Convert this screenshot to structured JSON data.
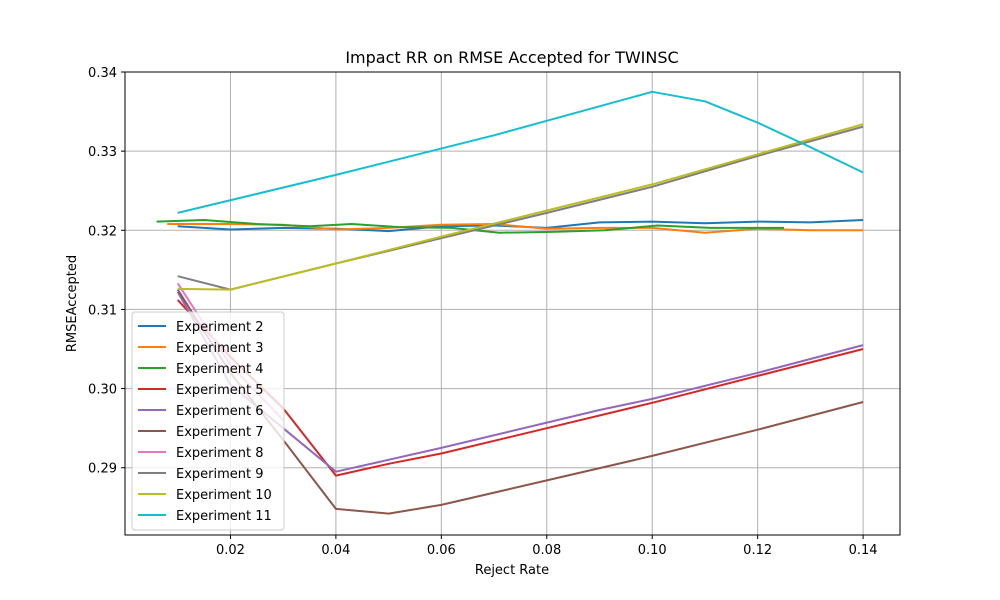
{
  "chart_data": {
    "type": "line",
    "title": "Impact RR on RMSE Accepted for TWINSC",
    "xlabel": "Reject Rate",
    "ylabel": "RMSEAccepted",
    "xlim": [
      0.0,
      0.147
    ],
    "ylim": [
      0.2815,
      0.34
    ],
    "xticks": [
      0.02,
      0.04,
      0.06,
      0.08,
      0.1,
      0.12,
      0.14
    ],
    "xtick_labels": [
      "0.02",
      "0.04",
      "0.06",
      "0.08",
      "0.10",
      "0.12",
      "0.14"
    ],
    "yticks": [
      0.29,
      0.3,
      0.31,
      0.32,
      0.33,
      0.34
    ],
    "ytick_labels": [
      "0.29",
      "0.30",
      "0.31",
      "0.32",
      "0.33",
      "0.34"
    ],
    "grid": true,
    "legend_position": "lower-left",
    "series": [
      {
        "name": "Experiment 2",
        "color": "#1f77b4",
        "x": [
          0.01,
          0.02,
          0.03,
          0.04,
          0.05,
          0.06,
          0.07,
          0.08,
          0.09,
          0.1,
          0.11,
          0.12,
          0.13,
          0.14
        ],
        "y": [
          0.3205,
          0.3201,
          0.3203,
          0.3202,
          0.3199,
          0.3205,
          0.3206,
          0.3203,
          0.321,
          0.3211,
          0.3209,
          0.3211,
          0.321,
          0.3213
        ]
      },
      {
        "name": "Experiment 3",
        "color": "#ff7f0e",
        "x": [
          0.008,
          0.02,
          0.03,
          0.04,
          0.05,
          0.06,
          0.07,
          0.08,
          0.09,
          0.1,
          0.11,
          0.12,
          0.13,
          0.14
        ],
        "y": [
          0.3208,
          0.3208,
          0.3207,
          0.3201,
          0.3203,
          0.3207,
          0.3208,
          0.3202,
          0.3203,
          0.3203,
          0.3197,
          0.3202,
          0.32,
          0.32
        ]
      },
      {
        "name": "Experiment 4",
        "color": "#2ca02c",
        "x": [
          0.006,
          0.015,
          0.025,
          0.035,
          0.043,
          0.052,
          0.062,
          0.071,
          0.081,
          0.091,
          0.101,
          0.111,
          0.12,
          0.125
        ],
        "y": [
          0.3211,
          0.3213,
          0.3208,
          0.3205,
          0.3208,
          0.3204,
          0.3203,
          0.3197,
          0.3198,
          0.32,
          0.3206,
          0.3203,
          0.3203,
          0.3203
        ]
      },
      {
        "name": "Experiment 5",
        "color": "#d62728",
        "x": [
          0.01,
          0.02,
          0.03,
          0.04,
          0.05,
          0.06,
          0.08,
          0.1,
          0.12,
          0.14
        ],
        "y": [
          0.3112,
          0.304,
          0.2975,
          0.289,
          0.2905,
          0.2918,
          0.295,
          0.2982,
          0.3016,
          0.305
        ]
      },
      {
        "name": "Experiment 6",
        "color": "#9467bd",
        "x": [
          0.01,
          0.02,
          0.03,
          0.04,
          0.06,
          0.08,
          0.09,
          0.1,
          0.12,
          0.14
        ],
        "y": [
          0.3122,
          0.3005,
          0.295,
          0.2895,
          0.2925,
          0.2957,
          0.2973,
          0.2987,
          0.302,
          0.3055
        ]
      },
      {
        "name": "Experiment 7",
        "color": "#8c564b",
        "x": [
          0.01,
          0.02,
          0.03,
          0.04,
          0.05,
          0.06,
          0.08,
          0.1,
          0.12,
          0.14
        ],
        "y": [
          0.3125,
          0.302,
          0.2935,
          0.2848,
          0.2842,
          0.2853,
          0.2884,
          0.2915,
          0.2948,
          0.2983
        ]
      },
      {
        "name": "Experiment 8",
        "color": "#e377c2",
        "x": [
          0.01,
          0.02,
          0.03
        ],
        "y": [
          0.3133,
          0.303,
          0.296
        ]
      },
      {
        "name": "Experiment 9",
        "color": "#7f7f7f",
        "x": [
          0.01,
          0.02,
          0.04,
          0.06,
          0.08,
          0.1,
          0.12,
          0.14
        ],
        "y": [
          0.3142,
          0.3125,
          0.3158,
          0.319,
          0.3222,
          0.3255,
          0.3294,
          0.3331
        ]
      },
      {
        "name": "Experiment 10",
        "color": "#bcbd22",
        "x": [
          0.01,
          0.02,
          0.04,
          0.06,
          0.08,
          0.1,
          0.12,
          0.14
        ],
        "y": [
          0.3126,
          0.3125,
          0.3158,
          0.3192,
          0.3225,
          0.3258,
          0.3296,
          0.3334
        ]
      },
      {
        "name": "Experiment 11",
        "color": "#17becf",
        "x": [
          0.01,
          0.04,
          0.07,
          0.1,
          0.11,
          0.12,
          0.13,
          0.14
        ],
        "y": [
          0.3222,
          0.327,
          0.332,
          0.3375,
          0.3363,
          0.3336,
          0.3305,
          0.3273
        ]
      }
    ]
  }
}
